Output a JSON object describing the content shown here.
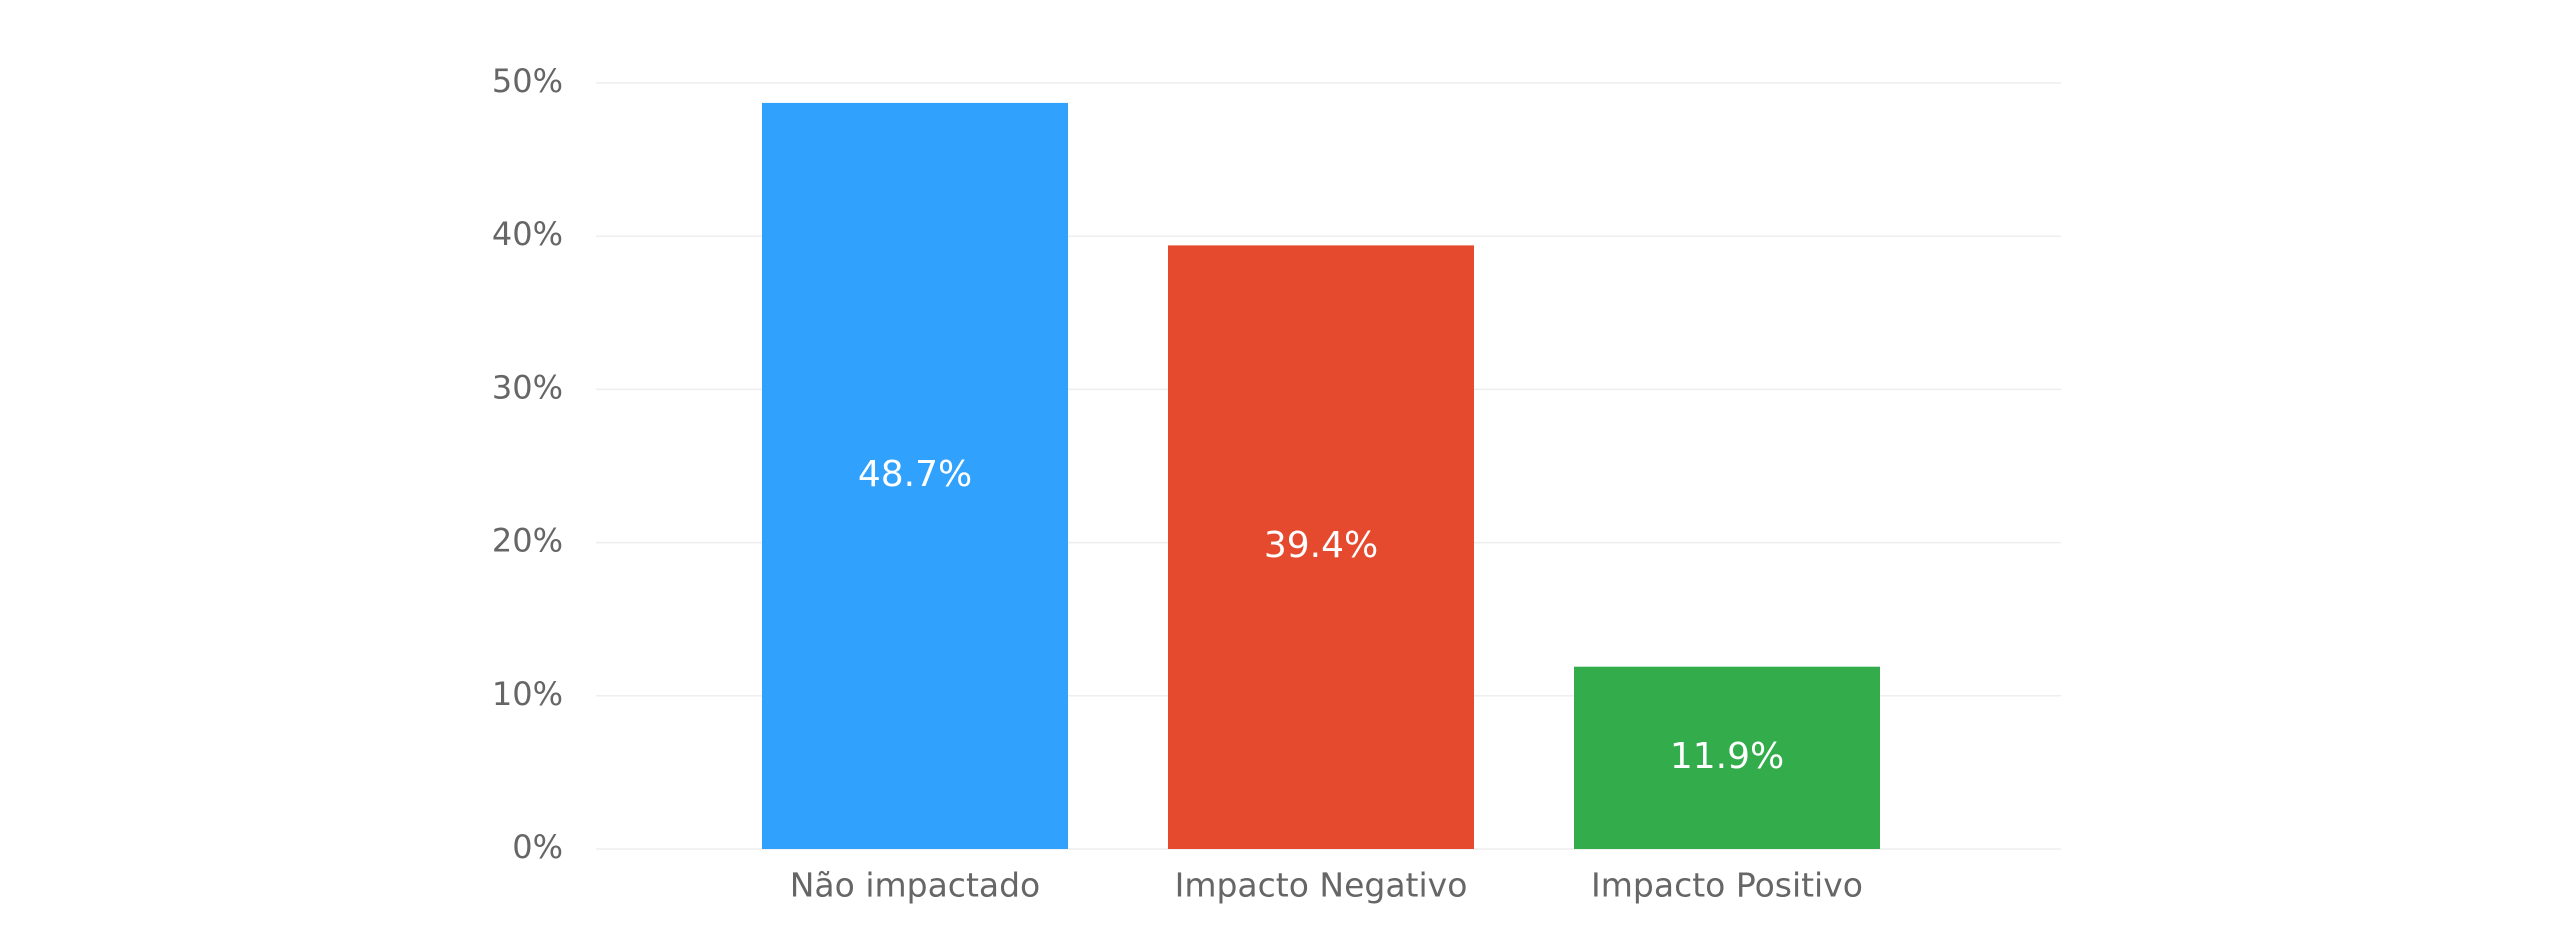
{
  "chart_data": {
    "type": "bar",
    "categories": [
      "Não impactado",
      "Impacto Negativo",
      "Impacto Positivo"
    ],
    "values": [
      48.7,
      39.4,
      11.9
    ],
    "value_labels": [
      "48.7%",
      "39.4%",
      "11.9%"
    ],
    "colors": [
      "#31a1fe",
      "#e64a2e",
      "#33ac4c"
    ],
    "ylim": [
      0,
      50
    ],
    "yticks": [
      {
        "value": 0,
        "label": "0%"
      },
      {
        "value": 10,
        "label": "10%"
      },
      {
        "value": 20,
        "label": "20%"
      },
      {
        "value": 30,
        "label": "30%"
      },
      {
        "value": 40,
        "label": "40%"
      },
      {
        "value": 50,
        "label": "50%"
      }
    ],
    "grid": true
  }
}
